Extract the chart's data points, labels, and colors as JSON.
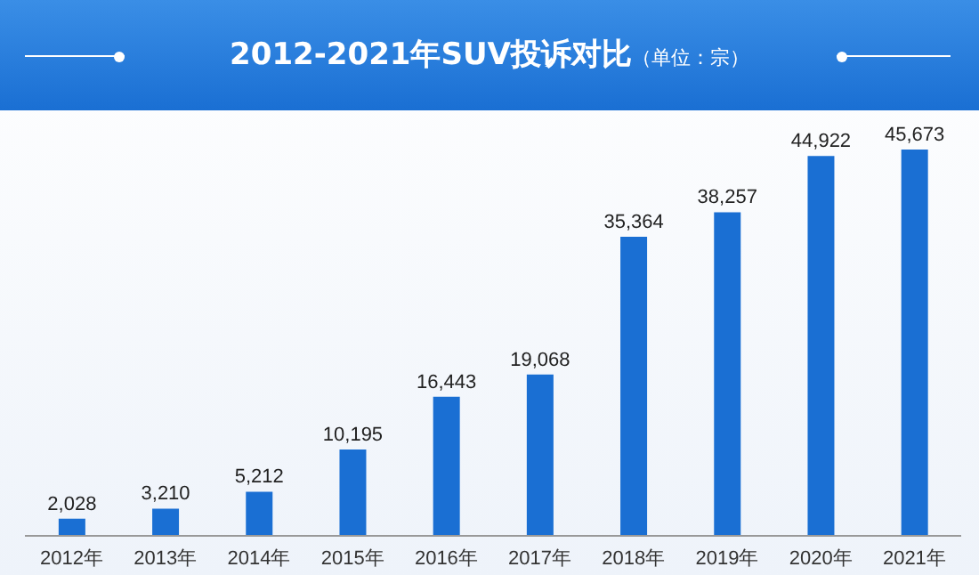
{
  "chart_data": {
    "type": "bar",
    "title": "2012-2021年SUV投诉对比",
    "subtitle": "（单位：宗）",
    "categories": [
      "2012年",
      "2013年",
      "2014年",
      "2015年",
      "2016年",
      "2017年",
      "2018年",
      "2019年",
      "2020年",
      "2021年"
    ],
    "values": [
      2028,
      3210,
      5212,
      10195,
      16443,
      19068,
      35364,
      38257,
      44922,
      45673
    ],
    "value_labels": [
      "2,028",
      "3,210",
      "5,212",
      "10,195",
      "16,443",
      "19,068",
      "35,364",
      "38,257",
      "44,922",
      "45,673"
    ],
    "color": "#1a6fd3",
    "tick_labels": "x"
  }
}
